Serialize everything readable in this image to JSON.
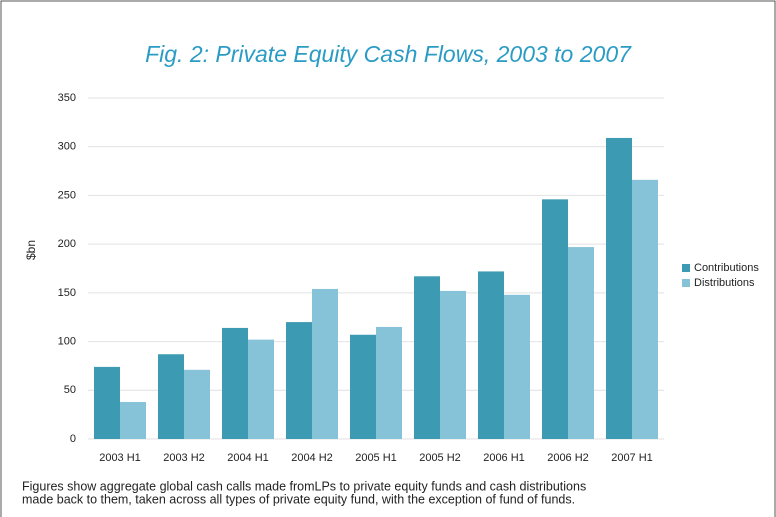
{
  "chart_data": {
    "type": "bar",
    "title": "Fig. 2: Private Equity Cash Flows, 2003 to 2007",
    "y_label": "$bn",
    "categories": [
      "2003 H1",
      "2003 H2",
      "2004 H1",
      "2004 H2",
      "2005 H1",
      "2005 H2",
      "2006 H1",
      "2006 H2",
      "2007 H1"
    ],
    "series": [
      {
        "name": "Contributions",
        "color": "#3d9ab3",
        "values": [
          74,
          87,
          114,
          120,
          107,
          167,
          172,
          246,
          309
        ]
      },
      {
        "name": "Distributions",
        "color": "#86c3d8",
        "values": [
          38,
          71,
          102,
          154,
          115,
          152,
          148,
          197,
          266
        ]
      }
    ],
    "ylim": [
      0,
      350
    ],
    "yticks": [
      0,
      50,
      100,
      150,
      200,
      250,
      300,
      350
    ],
    "grid": true,
    "legend": "right",
    "caption": [
      "Figures show aggregate global cash calls made fromLPs to private equity funds and cash distributions",
      "made back to them, taken across all types of private equity fund, with the exception of fund of funds."
    ]
  }
}
